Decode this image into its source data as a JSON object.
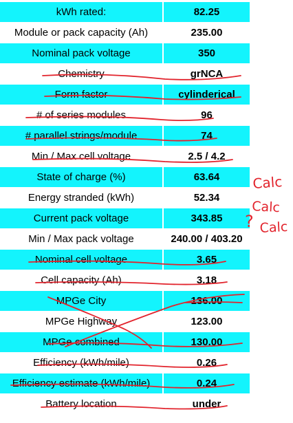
{
  "rows": [
    {
      "label": "kWh rated:",
      "value": "82.25",
      "bg": "cyan",
      "struck": false
    },
    {
      "label": "Module or pack capacity (Ah)",
      "value": "235.00",
      "bg": "white",
      "struck": false
    },
    {
      "label": "Nominal pack voltage",
      "value": "350",
      "bg": "cyan",
      "struck": false
    },
    {
      "label": "Chemistry",
      "value": "grNCA",
      "bg": "white",
      "struck": true
    },
    {
      "label": "Form factor",
      "value": "cylinderical",
      "bg": "cyan",
      "struck": true
    },
    {
      "label": "# of series modules",
      "value": "96",
      "bg": "white",
      "struck": true
    },
    {
      "label": "# parallel strings/module",
      "value": "74",
      "bg": "cyan",
      "struck": true
    },
    {
      "label": "Min / Max cell voltage",
      "value": "2.5 / 4.2",
      "bg": "white",
      "struck": true
    },
    {
      "label": "State of charge (%)",
      "value": "63.64",
      "bg": "cyan",
      "struck": false
    },
    {
      "label": "Energy stranded (kWh)",
      "value": "52.34",
      "bg": "white",
      "struck": false
    },
    {
      "label": "Current pack voltage",
      "value": "343.85",
      "bg": "cyan",
      "struck": false
    },
    {
      "label": "Min / Max pack voltage",
      "value": "240.00 / 403.20",
      "bg": "white",
      "struck": false
    },
    {
      "label": "Nominal cell voltage",
      "value": "3.65",
      "bg": "cyan",
      "struck": true
    },
    {
      "label": "Cell capacity (Ah)",
      "value": "3.18",
      "bg": "white",
      "struck": true
    },
    {
      "label": "MPGe City",
      "value": "136.00",
      "bg": "cyan",
      "struck": true
    },
    {
      "label": "MPGe Highway",
      "value": "123.00",
      "bg": "white",
      "struck": true
    },
    {
      "label": "MPGe combined",
      "value": "130.00",
      "bg": "cyan",
      "struck": true
    },
    {
      "label": "Efficiency (kWh/mile)",
      "value": "0.26",
      "bg": "white",
      "struck": true
    },
    {
      "label": "Efficiency estimate (kWh/mile)",
      "value": "0.24",
      "bg": "cyan",
      "struck": true
    },
    {
      "label": "Battery location",
      "value": "under",
      "bg": "white",
      "struck": true
    }
  ],
  "annotations": {
    "calc_1": "Calc",
    "calc_2": "Calc",
    "calc_3": "Calc",
    "question_mark": "?"
  },
  "colors": {
    "cyan_row": "#13f4fd",
    "white_row": "#ffffff",
    "ink": "#e2232c"
  }
}
